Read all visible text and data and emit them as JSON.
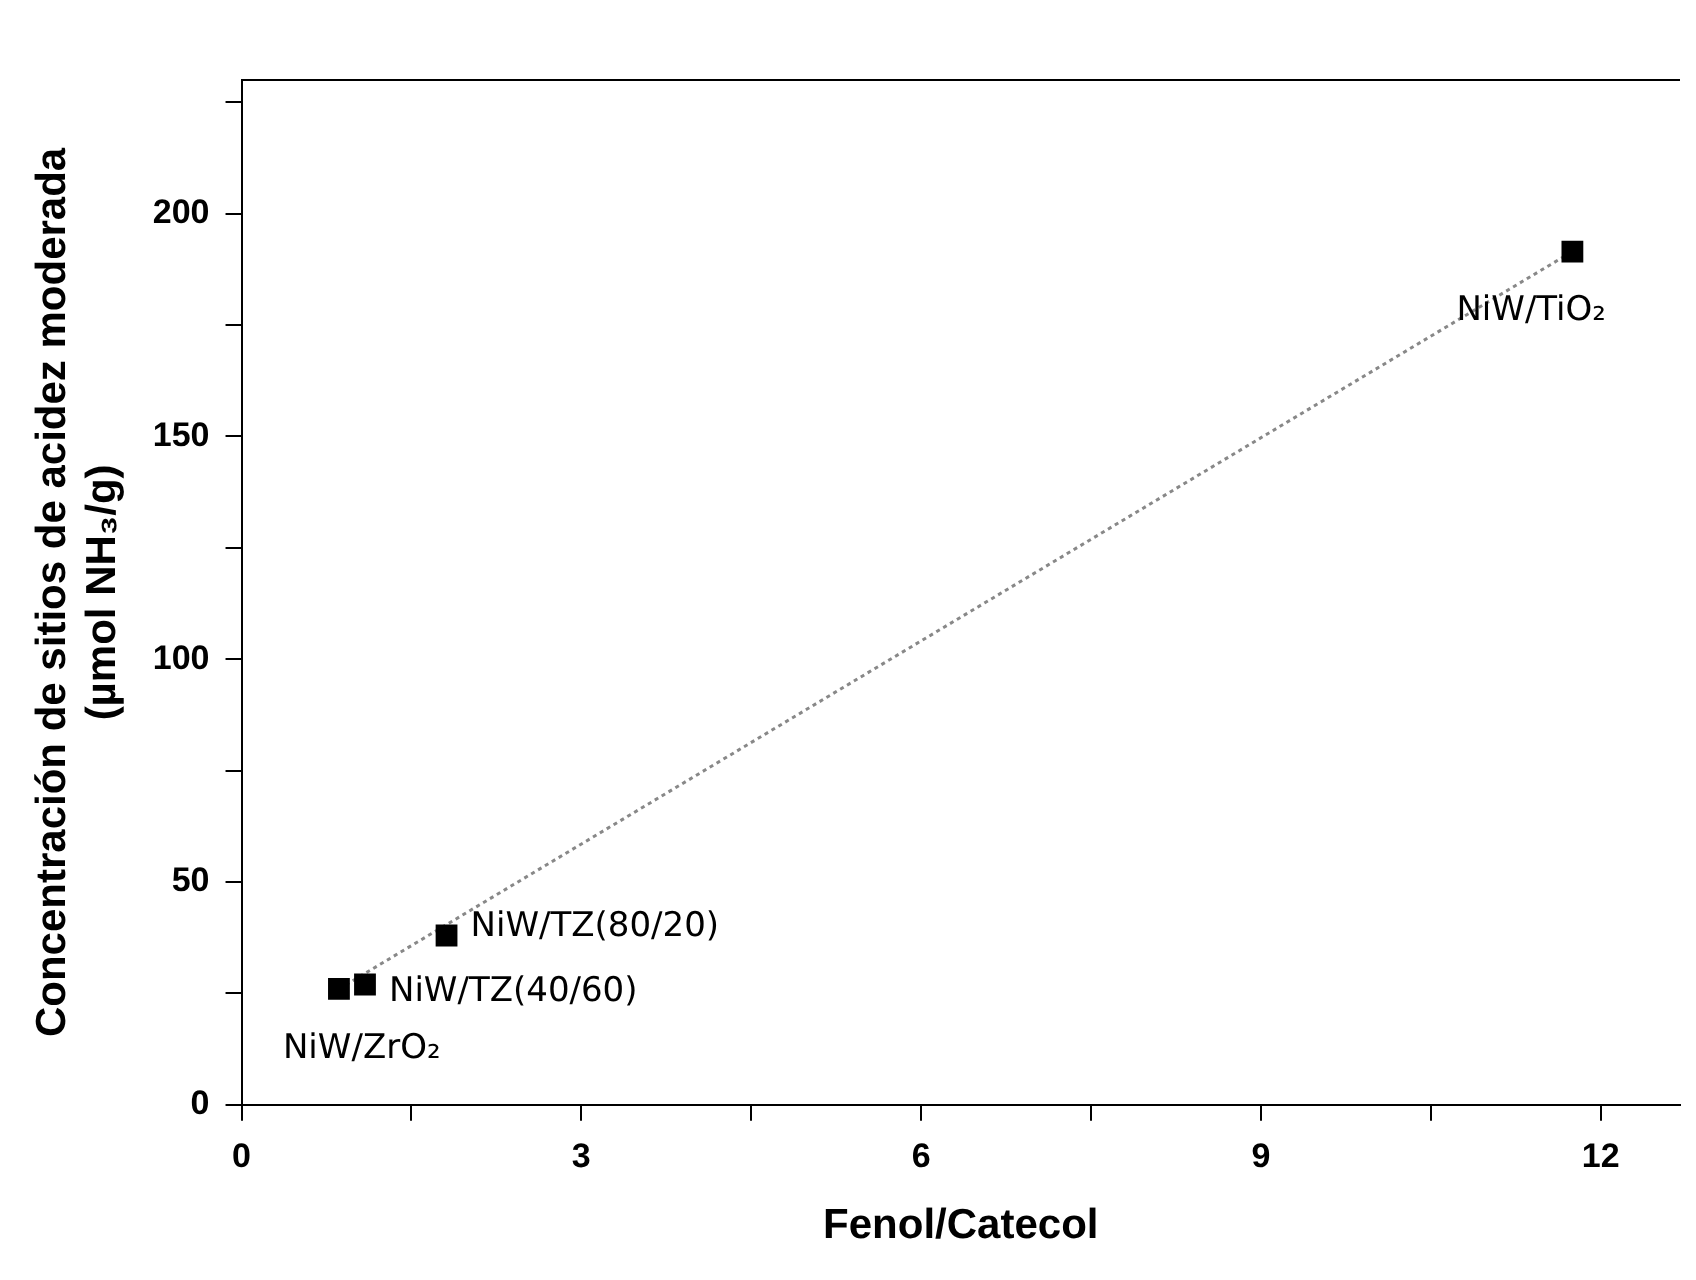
{
  "chart_data": {
    "type": "scatter",
    "xlabel": "Fenol/Catecol",
    "ylabel": "Concentración de sitios de acidez moderada\n(µmol NH₃/g)",
    "x": [
      0.86,
      1.09,
      1.81,
      11.75
    ],
    "series": [
      {
        "color": "#000000",
        "values": [
          26,
          27,
          38,
          191.5
        ],
        "marker": "square"
      },
      {
        "type": "line",
        "color": "#888888",
        "x": [
          0.86,
          11.75
        ],
        "values": [
          26,
          191.5
        ],
        "line_style": "dotted",
        "marker": "none"
      }
    ],
    "annotations": [
      {
        "text": "NiW/ZrO₂",
        "x": 0.86,
        "y": 26
      },
      {
        "text": "NiW/TZ(40/60)",
        "x": 1.09,
        "y": 27
      },
      {
        "text": "NiW/TZ(80/20)",
        "x": 1.81,
        "y": 38
      },
      {
        "text": "NiW/TiO₂",
        "x": 11.75,
        "y": 191.5
      }
    ],
    "xlim": [
      0,
      12.7
    ],
    "xticks": [
      0,
      {
        "value": 1.5,
        "label": null
      },
      3,
      {
        "value": 4.5,
        "label": null
      },
      6,
      {
        "value": 7.5,
        "label": null
      },
      9,
      {
        "value": 10.5,
        "label": null
      },
      12
    ],
    "ylim": [
      0,
      230
    ],
    "yticks": [
      0,
      {
        "value": 25,
        "label": null
      },
      50,
      {
        "value": 75,
        "label": null
      },
      100,
      {
        "value": 125,
        "label": null
      },
      150,
      {
        "value": 175,
        "label": null
      },
      200,
      {
        "value": 225,
        "label": null
      }
    ],
    "grid": false,
    "legend": false
  }
}
